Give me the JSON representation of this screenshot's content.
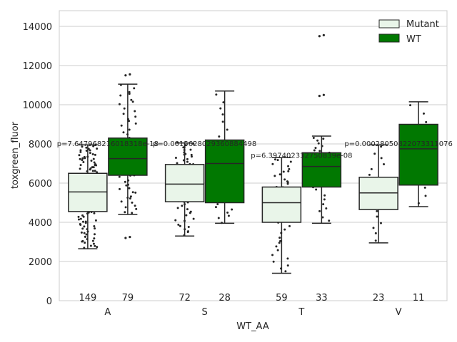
{
  "chart_data": {
    "type": "box",
    "xlabel": "WT_AA",
    "ylabel": "toxgreen_fluor",
    "ylim": [
      0,
      14800
    ],
    "yticks": [
      0,
      2000,
      4000,
      6000,
      8000,
      10000,
      12000,
      14000
    ],
    "grid": true,
    "legend_position": "top-right",
    "categories": [
      "A",
      "S",
      "T",
      "V"
    ],
    "series": [
      {
        "name": "Mutant",
        "color": "#e9f5e9",
        "boxes": [
          {
            "category": "A",
            "whisker_low": 2650,
            "q1": 4550,
            "median": 5550,
            "q3": 6500,
            "whisker_high": 7950,
            "n": 149,
            "n_label": "149"
          },
          {
            "category": "S",
            "whisker_low": 3300,
            "q1": 5050,
            "median": 5950,
            "q3": 6950,
            "whisker_high": 8050,
            "n": 72,
            "n_label": "72"
          },
          {
            "category": "T",
            "whisker_low": 1400,
            "q1": 4000,
            "median": 5000,
            "q3": 5800,
            "whisker_high": 7300,
            "n": 59,
            "n_label": "59"
          },
          {
            "category": "V",
            "whisker_low": 2950,
            "q1": 4650,
            "median": 5500,
            "q3": 6300,
            "whisker_high": 7950,
            "n": 23,
            "n_label": "23"
          }
        ]
      },
      {
        "name": "WT",
        "color": "#017801",
        "boxes": [
          {
            "category": "A",
            "whisker_low": 4400,
            "q1": 6400,
            "median": 7250,
            "q3": 8300,
            "whisker_high": 11050,
            "outliers": [
              3200,
              3250,
              11500,
              11550
            ],
            "n": 79,
            "n_label": "79"
          },
          {
            "category": "S",
            "whisker_low": 3950,
            "q1": 5000,
            "median": 7000,
            "q3": 8200,
            "whisker_high": 10700,
            "n": 28,
            "n_label": "28"
          },
          {
            "category": "T",
            "whisker_low": 3950,
            "q1": 5800,
            "median": 6850,
            "q3": 7550,
            "whisker_high": 8400,
            "outliers": [
              10450,
              10500,
              13500,
              13550
            ],
            "n": 33,
            "n_label": "33"
          },
          {
            "category": "V",
            "whisker_low": 4800,
            "q1": 5900,
            "median": 7750,
            "q3": 9000,
            "whisker_high": 10150,
            "n": 11,
            "n_label": "11"
          }
        ]
      }
    ],
    "annotations": [
      {
        "category": "A",
        "text": "p=7.647968216018318e-18",
        "y": 8000
      },
      {
        "category": "S",
        "text": "p=0.0015628029360884498",
        "y": 8000
      },
      {
        "category": "T",
        "text": "p=6.397402332750839e-08",
        "y": 7400
      },
      {
        "category": "V",
        "text": "p=0.00028050822073311076",
        "y": 8000
      }
    ]
  }
}
